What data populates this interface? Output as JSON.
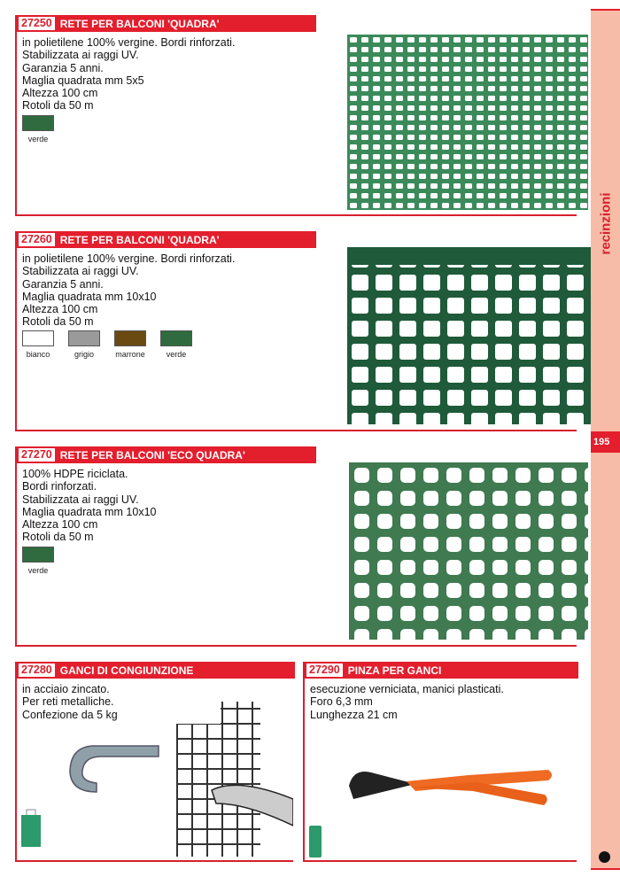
{
  "sidebar": {
    "category": "recinzioni",
    "page_number": "195"
  },
  "products": [
    {
      "code": "27250",
      "title": "RETE PER BALCONI 'QUADRA'",
      "lines": [
        "in polietilene 100% vergine. Bordi rinforzati.",
        "Stabilizzata ai raggi UV.",
        "Garanzia 5 anni.",
        "Maglia quadrata mm 5x5",
        "Altezza 100 cm",
        "Rotoli da 50 m"
      ],
      "colors": [
        {
          "label": "verde",
          "hex": "#2f6b3e"
        }
      ]
    },
    {
      "code": "27260",
      "title": "RETE PER BALCONI 'QUADRA'",
      "lines": [
        "in polietilene 100% vergine. Bordi rinforzati.",
        "Stabilizzata ai raggi UV.",
        "Garanzia 5 anni.",
        "Maglia quadrata mm 10x10",
        "Altezza 100 cm",
        "Rotoli da 50 m"
      ],
      "colors": [
        {
          "label": "bianco",
          "hex": "#ffffff"
        },
        {
          "label": "grigio",
          "hex": "#9a9a9a"
        },
        {
          "label": "marrone",
          "hex": "#6b4a12"
        },
        {
          "label": "verde",
          "hex": "#2f6b3e"
        }
      ]
    },
    {
      "code": "27270",
      "title": "RETE PER BALCONI 'ECO QUADRA'",
      "lines": [
        "100% HDPE riciclata.",
        "Bordi rinforzati.",
        "Stabilizzata ai raggi UV.",
        "Maglia quadrata mm 10x10",
        "Altezza 100 cm",
        "Rotoli da 50 m"
      ],
      "colors": [
        {
          "label": "verde",
          "hex": "#2f6b3e"
        }
      ]
    },
    {
      "code": "27280",
      "title": "GANCI DI CONGIUNZIONE",
      "lines": [
        "in acciaio zincato.",
        "Per reti metalliche.",
        "Confezione da 5 kg"
      ]
    },
    {
      "code": "27290",
      "title": "PINZA PER GANCI",
      "lines": [
        "esecuzione verniciata, manici plasticati.",
        "Foro 6,3 mm",
        "Lunghezza 21 cm"
      ]
    }
  ]
}
